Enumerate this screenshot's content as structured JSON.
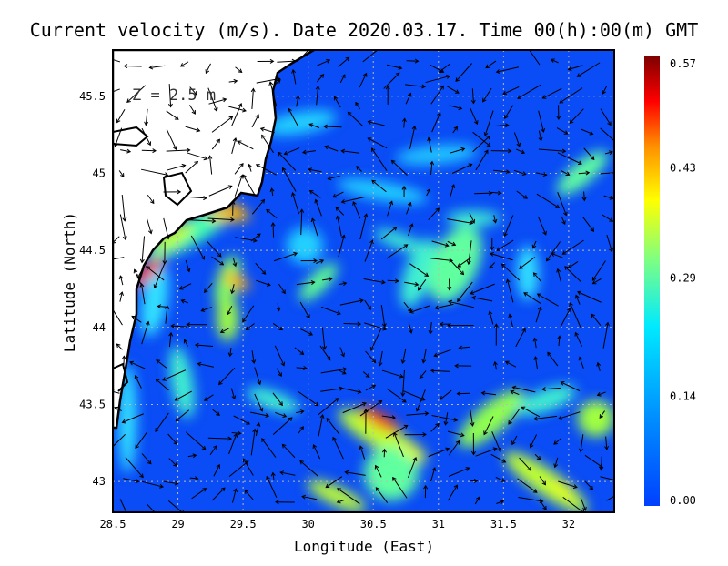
{
  "chart_data": {
    "type": "heatmap",
    "title": "Current velocity (m/s). Date 2020.03.17. Time 00(h):00(m) GMT",
    "annotation": "Z = 2.5 m",
    "xlabel": "Longitude (East)",
    "ylabel": "Latitude (North)",
    "xlim": [
      28.5,
      32.35
    ],
    "ylim": [
      42.8,
      45.8
    ],
    "xticks": [
      "28.5",
      "29",
      "29.5",
      "30",
      "30.5",
      "31",
      "31.5",
      "32"
    ],
    "xtick_values": [
      28.5,
      29,
      29.5,
      30,
      30.5,
      31,
      31.5,
      32
    ],
    "yticks": [
      "43",
      "43.5",
      "44",
      "44.5",
      "45",
      "45.5"
    ],
    "ytick_values": [
      43,
      43.5,
      44,
      44.5,
      45,
      45.5
    ],
    "grid": true,
    "colorbar": {
      "labels": [
        "0.57",
        "0.43",
        "0.29",
        "0.14",
        "0.00"
      ],
      "values": [
        0.57,
        0.43,
        0.29,
        0.14,
        0.0
      ],
      "range": [
        0.0,
        0.57
      ],
      "colors": [
        "#0040ff",
        "#00a0ff",
        "#00e8ff",
        "#80ff80",
        "#ffff00",
        "#ff9000",
        "#ff0000",
        "#800000"
      ]
    },
    "hotspots": [
      {
        "lon": 30.55,
        "lat": 43.4,
        "value": 0.5
      },
      {
        "lon": 28.75,
        "lat": 44.35,
        "value": 0.5
      },
      {
        "lon": 29.45,
        "lat": 44.75,
        "value": 0.4
      },
      {
        "lon": 29.45,
        "lat": 44.3,
        "value": 0.38
      },
      {
        "lon": 30.8,
        "lat": 43.2,
        "value": 0.35
      },
      {
        "lon": 31.95,
        "lat": 42.95,
        "value": 0.33
      }
    ]
  }
}
